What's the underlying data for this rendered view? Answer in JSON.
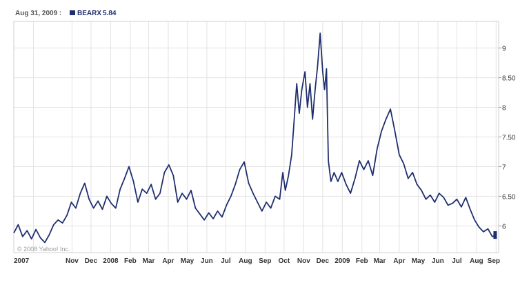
{
  "legend": {
    "date": "Aug 31, 2009 :",
    "symbol": "BEARX",
    "value": "5.84",
    "series_color": "#1f2f6e"
  },
  "copyright": "© 2008 Yahoo! Inc.",
  "chart_data": {
    "type": "line",
    "title": "",
    "xlabel": "",
    "ylabel": "",
    "ylim": [
      5.55,
      9.45
    ],
    "grid": true,
    "legend_position": "top-left",
    "y_ticks": [
      {
        "value": 6,
        "label": "6"
      },
      {
        "value": 6.5,
        "label": "6.50"
      },
      {
        "value": 7,
        "label": "7"
      },
      {
        "value": 7.5,
        "label": "7.50"
      },
      {
        "value": 8,
        "label": "8"
      },
      {
        "value": 8.5,
        "label": "8.50"
      },
      {
        "value": 9,
        "label": "9"
      }
    ],
    "x_ticks": [
      {
        "date": "2007-09-01",
        "label": "2007"
      },
      {
        "date": "2007-11-01",
        "label": "Nov"
      },
      {
        "date": "2007-12-01",
        "label": "Dec"
      },
      {
        "date": "2008-01-01",
        "label": "2008"
      },
      {
        "date": "2008-02-01",
        "label": "Feb"
      },
      {
        "date": "2008-03-01",
        "label": "Mar"
      },
      {
        "date": "2008-04-01",
        "label": "Apr"
      },
      {
        "date": "2008-05-01",
        "label": "May"
      },
      {
        "date": "2008-06-01",
        "label": "Jun"
      },
      {
        "date": "2008-07-01",
        "label": "Jul"
      },
      {
        "date": "2008-08-01",
        "label": "Aug"
      },
      {
        "date": "2008-09-01",
        "label": "Sep"
      },
      {
        "date": "2008-10-01",
        "label": "Oct"
      },
      {
        "date": "2008-11-01",
        "label": "Nov"
      },
      {
        "date": "2008-12-01",
        "label": "Dec"
      },
      {
        "date": "2009-01-01",
        "label": "2009"
      },
      {
        "date": "2009-02-01",
        "label": "Feb"
      },
      {
        "date": "2009-03-01",
        "label": "Mar"
      },
      {
        "date": "2009-04-01",
        "label": "Apr"
      },
      {
        "date": "2009-05-01",
        "label": "May"
      },
      {
        "date": "2009-06-01",
        "label": "Jun"
      },
      {
        "date": "2009-07-01",
        "label": "Jul"
      },
      {
        "date": "2009-08-01",
        "label": "Aug"
      },
      {
        "date": "2009-09-01",
        "label": "Sep"
      }
    ],
    "series": [
      {
        "color": "#1f2f6e",
        "points": [
          [
            "2007-08-01",
            5.88
          ],
          [
            "2007-08-08",
            6.02
          ],
          [
            "2007-08-15",
            5.82
          ],
          [
            "2007-08-22",
            5.92
          ],
          [
            "2007-08-29",
            5.78
          ],
          [
            "2007-09-05",
            5.94
          ],
          [
            "2007-09-12",
            5.8
          ],
          [
            "2007-09-19",
            5.72
          ],
          [
            "2007-09-26",
            5.85
          ],
          [
            "2007-10-03",
            6.02
          ],
          [
            "2007-10-10",
            6.1
          ],
          [
            "2007-10-17",
            6.05
          ],
          [
            "2007-10-24",
            6.18
          ],
          [
            "2007-10-31",
            6.4
          ],
          [
            "2007-11-07",
            6.3
          ],
          [
            "2007-11-14",
            6.55
          ],
          [
            "2007-11-21",
            6.72
          ],
          [
            "2007-11-28",
            6.45
          ],
          [
            "2007-12-05",
            6.3
          ],
          [
            "2007-12-12",
            6.42
          ],
          [
            "2007-12-19",
            6.28
          ],
          [
            "2007-12-26",
            6.5
          ],
          [
            "2008-01-02",
            6.38
          ],
          [
            "2008-01-09",
            6.3
          ],
          [
            "2008-01-16",
            6.62
          ],
          [
            "2008-01-23",
            6.8
          ],
          [
            "2008-01-30",
            7.0
          ],
          [
            "2008-02-06",
            6.75
          ],
          [
            "2008-02-13",
            6.4
          ],
          [
            "2008-02-20",
            6.62
          ],
          [
            "2008-02-27",
            6.55
          ],
          [
            "2008-03-05",
            6.7
          ],
          [
            "2008-03-12",
            6.45
          ],
          [
            "2008-03-19",
            6.55
          ],
          [
            "2008-03-26",
            6.9
          ],
          [
            "2008-04-02",
            7.03
          ],
          [
            "2008-04-09",
            6.85
          ],
          [
            "2008-04-16",
            6.4
          ],
          [
            "2008-04-23",
            6.55
          ],
          [
            "2008-04-30",
            6.45
          ],
          [
            "2008-05-07",
            6.6
          ],
          [
            "2008-05-14",
            6.3
          ],
          [
            "2008-05-21",
            6.2
          ],
          [
            "2008-05-28",
            6.1
          ],
          [
            "2008-06-04",
            6.22
          ],
          [
            "2008-06-11",
            6.12
          ],
          [
            "2008-06-18",
            6.25
          ],
          [
            "2008-06-25",
            6.15
          ],
          [
            "2008-07-02",
            6.35
          ],
          [
            "2008-07-09",
            6.5
          ],
          [
            "2008-07-16",
            6.7
          ],
          [
            "2008-07-23",
            6.95
          ],
          [
            "2008-07-30",
            7.08
          ],
          [
            "2008-08-06",
            6.72
          ],
          [
            "2008-08-13",
            6.55
          ],
          [
            "2008-08-20",
            6.4
          ],
          [
            "2008-08-27",
            6.25
          ],
          [
            "2008-09-03",
            6.4
          ],
          [
            "2008-09-10",
            6.3
          ],
          [
            "2008-09-17",
            6.5
          ],
          [
            "2008-09-24",
            6.45
          ],
          [
            "2008-09-29",
            6.9
          ],
          [
            "2008-10-03",
            6.6
          ],
          [
            "2008-10-08",
            6.85
          ],
          [
            "2008-10-13",
            7.2
          ],
          [
            "2008-10-17",
            7.8
          ],
          [
            "2008-10-21",
            8.4
          ],
          [
            "2008-10-25",
            7.9
          ],
          [
            "2008-10-29",
            8.3
          ],
          [
            "2008-11-03",
            8.6
          ],
          [
            "2008-11-07",
            8.0
          ],
          [
            "2008-11-11",
            8.4
          ],
          [
            "2008-11-15",
            7.8
          ],
          [
            "2008-11-19",
            8.3
          ],
          [
            "2008-11-23",
            8.7
          ],
          [
            "2008-11-27",
            9.25
          ],
          [
            "2008-12-01",
            8.6
          ],
          [
            "2008-12-04",
            8.3
          ],
          [
            "2008-12-07",
            8.65
          ],
          [
            "2008-12-10",
            7.1
          ],
          [
            "2008-12-14",
            6.75
          ],
          [
            "2008-12-19",
            6.9
          ],
          [
            "2008-12-25",
            6.75
          ],
          [
            "2008-12-31",
            6.9
          ],
          [
            "2009-01-07",
            6.7
          ],
          [
            "2009-01-14",
            6.55
          ],
          [
            "2009-01-21",
            6.8
          ],
          [
            "2009-01-28",
            7.1
          ],
          [
            "2009-02-04",
            6.95
          ],
          [
            "2009-02-11",
            7.1
          ],
          [
            "2009-02-18",
            6.85
          ],
          [
            "2009-02-25",
            7.3
          ],
          [
            "2009-03-04",
            7.6
          ],
          [
            "2009-03-11",
            7.8
          ],
          [
            "2009-03-18",
            7.97
          ],
          [
            "2009-03-25",
            7.6
          ],
          [
            "2009-04-01",
            7.2
          ],
          [
            "2009-04-08",
            7.05
          ],
          [
            "2009-04-15",
            6.8
          ],
          [
            "2009-04-22",
            6.9
          ],
          [
            "2009-04-29",
            6.7
          ],
          [
            "2009-05-06",
            6.6
          ],
          [
            "2009-05-13",
            6.45
          ],
          [
            "2009-05-20",
            6.52
          ],
          [
            "2009-05-27",
            6.4
          ],
          [
            "2009-06-03",
            6.55
          ],
          [
            "2009-06-10",
            6.48
          ],
          [
            "2009-06-17",
            6.35
          ],
          [
            "2009-06-24",
            6.38
          ],
          [
            "2009-07-01",
            6.45
          ],
          [
            "2009-07-08",
            6.32
          ],
          [
            "2009-07-15",
            6.48
          ],
          [
            "2009-07-22",
            6.28
          ],
          [
            "2009-07-29",
            6.1
          ],
          [
            "2009-08-05",
            5.98
          ],
          [
            "2009-08-12",
            5.9
          ],
          [
            "2009-08-19",
            5.95
          ],
          [
            "2009-08-26",
            5.82
          ],
          [
            "2009-08-31",
            5.84
          ]
        ]
      }
    ]
  }
}
